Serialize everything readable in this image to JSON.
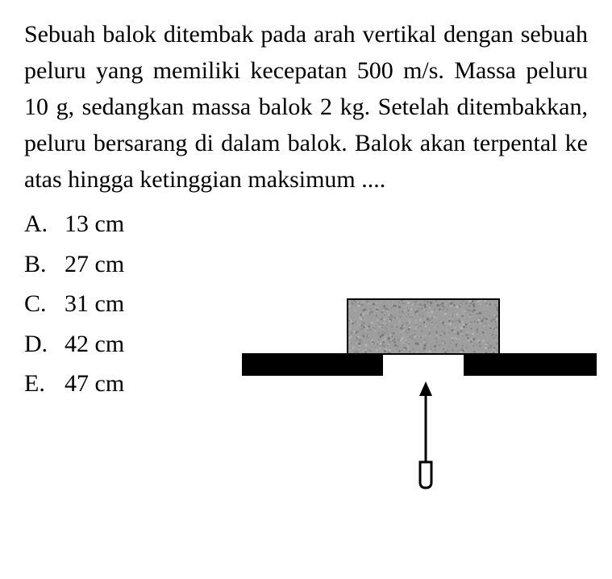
{
  "question": {
    "text": "Sebuah balok ditembak pada arah vertikal dengan sebuah peluru yang memiliki kecepatan 500 m/s. Massa peluru 10 g, sedangkan massa balok 2 kg. Setelah ditembakkan, peluru bersarang di dalam balok. Balok akan terpental ke atas hingga ketinggian maksimum ...."
  },
  "options": [
    {
      "letter": "A.",
      "value": "13 cm"
    },
    {
      "letter": "B.",
      "value": "27 cm"
    },
    {
      "letter": "C.",
      "value": "31 cm"
    },
    {
      "letter": "D.",
      "value": "42 cm"
    },
    {
      "letter": "E.",
      "value": "47 cm"
    }
  ],
  "diagram": {
    "type": "infographic",
    "background_color": "#ffffff",
    "block": {
      "fill_color": "#9e9e9e",
      "border_color": "#000000",
      "noise_colors": [
        "#7a7a7a",
        "#b5b5b5",
        "#8c8c8c",
        "#a8a8a8"
      ]
    },
    "table_color": "#000000",
    "arrow": {
      "stroke_color": "#000000",
      "stroke_width": 3,
      "bullet_fill": "#ffffff"
    }
  },
  "typography": {
    "body_fontsize": 30,
    "font_family": "Georgia, serif",
    "text_color": "#000000"
  }
}
